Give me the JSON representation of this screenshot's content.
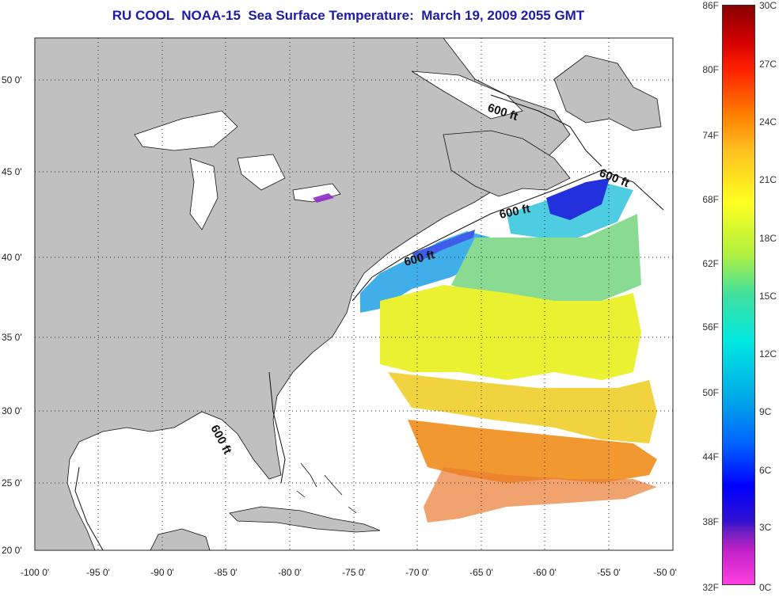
{
  "title": "RU COOL  NOAA-15  Sea Surface Temperature:  March 19, 2009 2055 GMT",
  "lat_labels": [
    "50 0'",
    "45 0'",
    "40 0'",
    "35 0'",
    "30 0'",
    "25 0'",
    "20 0'"
  ],
  "lon_labels": [
    "-100 0'",
    "-95 0'",
    "-90 0'",
    "-85 0'",
    "-80 0'",
    "-75 0'",
    "-70 0'",
    "-65 0'",
    "-60 0'",
    "-55 0'",
    "-50 0'"
  ],
  "contour_label": "600 ft",
  "colorbar": {
    "fahrenheit": [
      "86F",
      "80F",
      "74F",
      "68F",
      "62F",
      "56F",
      "50F",
      "44F",
      "38F",
      "32F"
    ],
    "celsius": [
      "30C",
      "27C",
      "24C",
      "21C",
      "18C",
      "15C",
      "12C",
      "9C",
      "6C",
      "3C",
      "0C"
    ]
  },
  "colors": {
    "land": "#c0c0c0",
    "title": "#1c1ca8",
    "grid": "#222222"
  }
}
